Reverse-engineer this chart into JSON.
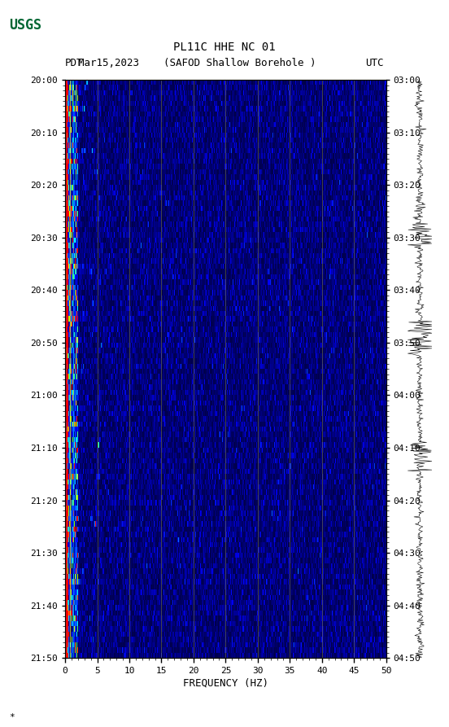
{
  "title_line1": "PL11C HHE NC 01",
  "title_line2": "(SAFOD Shallow Borehole )",
  "date_label": "Mar15,2023",
  "pdt_label": "PDT",
  "utc_label": "UTC",
  "left_yticks": [
    "20:00",
    "20:10",
    "20:20",
    "20:30",
    "20:40",
    "20:50",
    "21:00",
    "21:10",
    "21:20",
    "21:30",
    "21:40",
    "21:50"
  ],
  "right_yticks": [
    "03:00",
    "03:10",
    "03:20",
    "03:30",
    "03:40",
    "03:50",
    "04:00",
    "04:10",
    "04:20",
    "04:30",
    "04:40",
    "04:50"
  ],
  "xticks": [
    0,
    5,
    10,
    15,
    20,
    25,
    30,
    35,
    40,
    45,
    50
  ],
  "xlabel": "FREQUENCY (HZ)",
  "freq_max": 50,
  "num_time_steps": 110,
  "num_freq_steps": 500,
  "bg_color": "#ffffff",
  "spectrogram_bg": "#0000aa",
  "low_freq_bright_color": "#0044ff",
  "grid_color": "#555500",
  "tick_color": "#000000",
  "left_edge_color_red": "#ff0000",
  "left_edge_color_yellow": "#ffff00",
  "left_edge_color_cyan": "#00ffff"
}
